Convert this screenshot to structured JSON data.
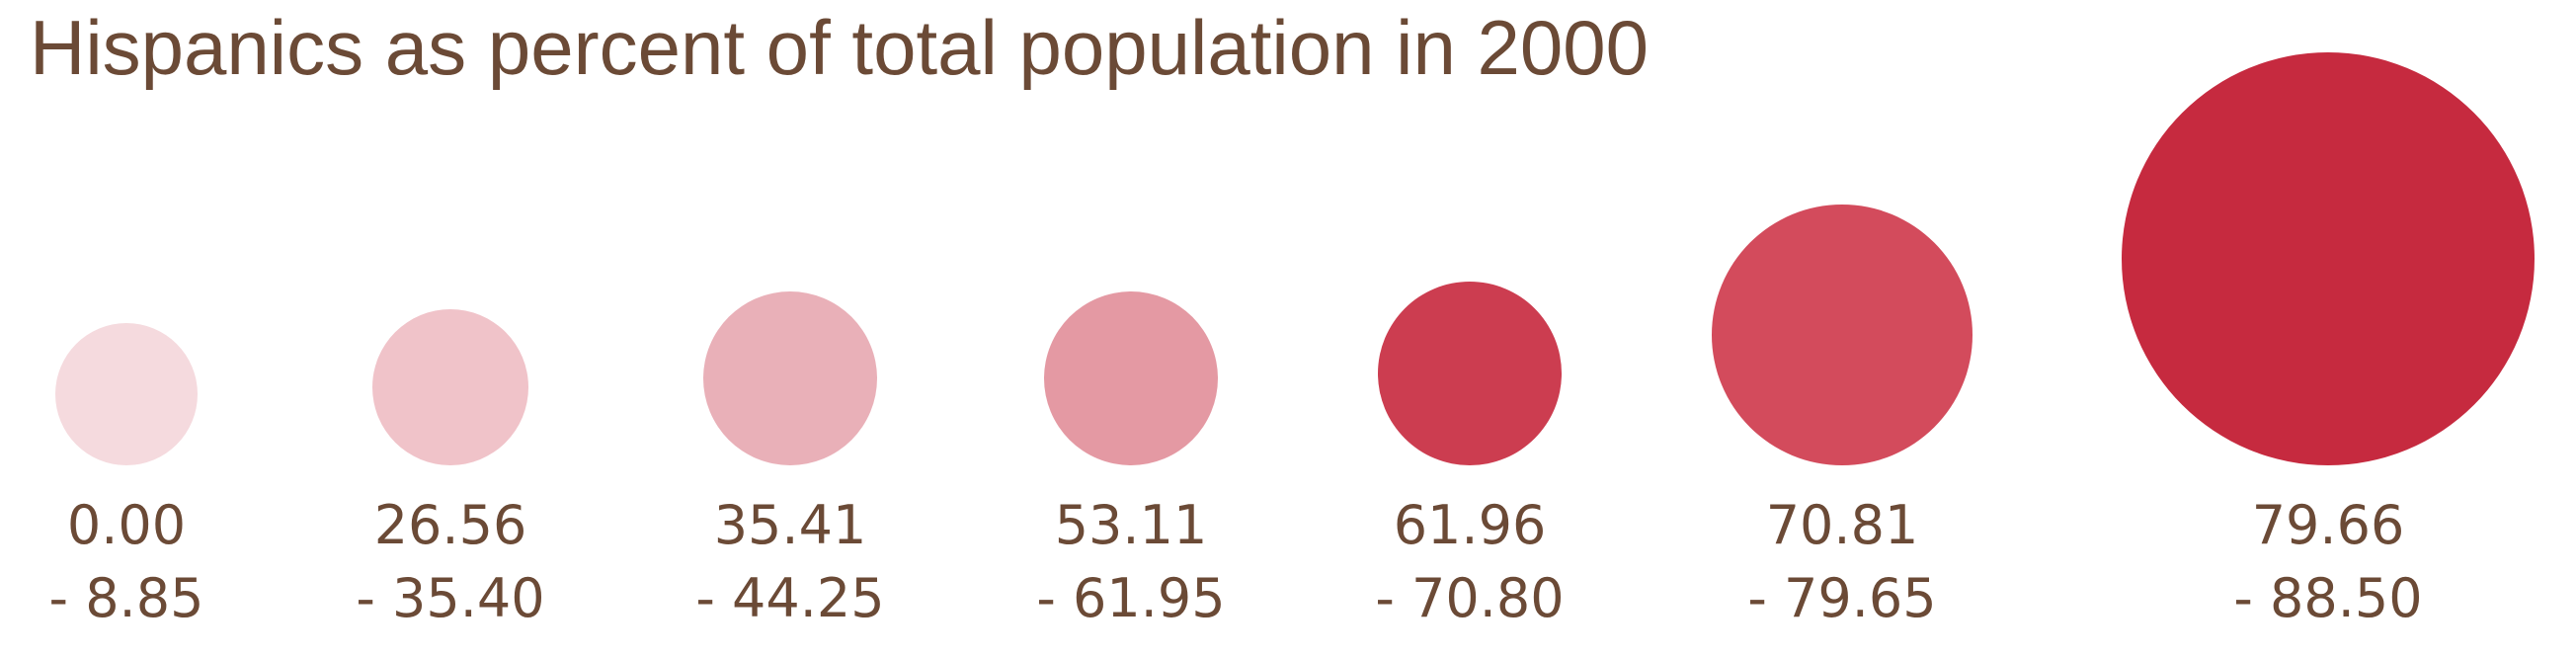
{
  "chart_data": {
    "type": "proportional-symbol-legend",
    "title": "Hispanics as percent of total population in 2000",
    "classes": [
      {
        "from": "0.00",
        "to": "- 8.85",
        "color": "#f5dade"
      },
      {
        "from": "26.56",
        "to": "- 35.40",
        "color": "#f0c3c9"
      },
      {
        "from": "35.41",
        "to": "- 44.25",
        "color": "#e9b0b8"
      },
      {
        "from": "53.11",
        "to": "- 61.95",
        "color": "#e499a3"
      },
      {
        "from": "61.96",
        "to": "- 70.80",
        "color": "#cc3d50"
      },
      {
        "from": "70.81",
        "to": "- 79.65",
        "color": "#d34b5c"
      },
      {
        "from": "79.66",
        "to": "- 88.50",
        "color": "#c62a3f"
      }
    ]
  }
}
